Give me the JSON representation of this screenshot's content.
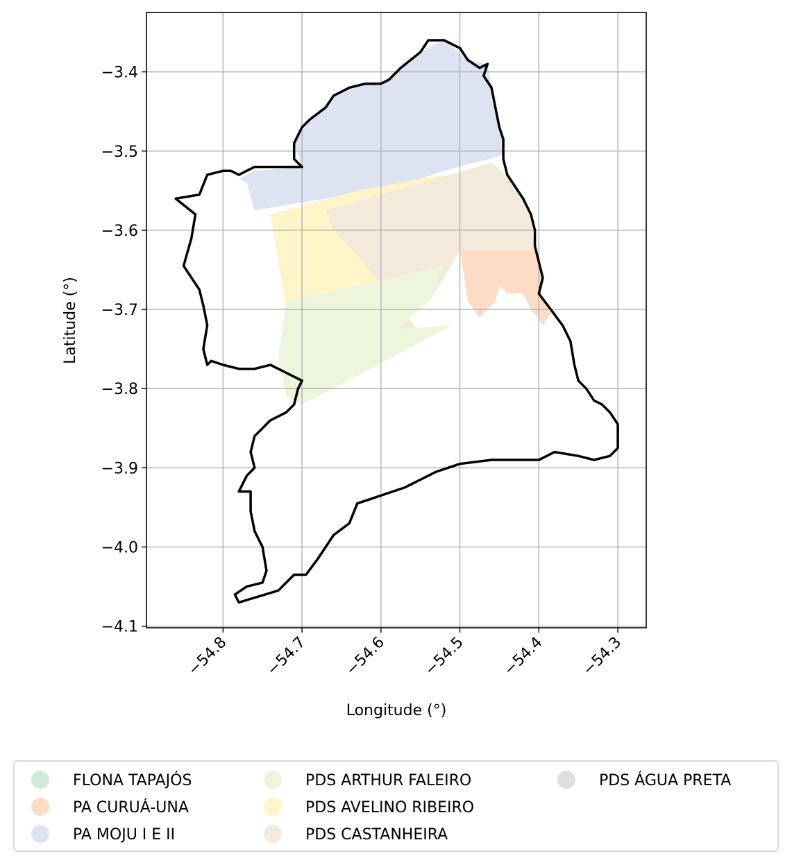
{
  "chart_data": {
    "type": "map",
    "title": "",
    "xlabel": "Longitude (°)",
    "ylabel": "Latitude (°)",
    "xlim": [
      -54.897,
      -54.264
    ],
    "ylim": [
      -4.102,
      -3.325
    ],
    "xticks": [
      -54.8,
      -54.7,
      -54.6,
      -54.5,
      -54.4,
      -54.3
    ],
    "xtick_labels": [
      "−54.8",
      "−54.7",
      "−54.6",
      "−54.5",
      "−54.4",
      "−54.3"
    ],
    "yticks": [
      -3.4,
      -3.5,
      -3.6,
      -3.7,
      -3.8,
      -3.9,
      -4.0,
      -4.1
    ],
    "ytick_labels": [
      "−3.4",
      "−3.5",
      "−3.6",
      "−3.7",
      "−3.8",
      "−3.9",
      "−4.0",
      "−4.1"
    ],
    "grid": true,
    "legend_position": "bottom",
    "legend_columns": 3,
    "legend": [
      {
        "label": "FLONA TAPAJÓS",
        "color": "#cfeadc"
      },
      {
        "label": "PA CURUÁ-UNA",
        "color": "#fddcc5"
      },
      {
        "label": "PA MOJU I E II",
        "color": "#dde3f0"
      },
      {
        "label": "PDS ARTHUR FALEIRO",
        "color": "#edf6dc"
      },
      {
        "label": "PDS AVELINO RIBEIRO",
        "color": "#fff5c8"
      },
      {
        "label": "PDS CASTANHEIRA",
        "color": "#f4eadc"
      },
      {
        "label": "PDS ÁGUA PRETA",
        "color": "#dedede"
      }
    ],
    "boundary_color": "#000000",
    "grid_color": "#b0b0b0",
    "boundary": [
      [
        -54.86,
        -3.56
      ],
      [
        -54.83,
        -3.555
      ],
      [
        -54.82,
        -3.53
      ],
      [
        -54.8,
        -3.525
      ],
      [
        -54.79,
        -3.525
      ],
      [
        -54.78,
        -3.53
      ],
      [
        -54.76,
        -3.52
      ],
      [
        -54.74,
        -3.52
      ],
      [
        -54.7,
        -3.52
      ],
      [
        -54.71,
        -3.51
      ],
      [
        -54.71,
        -3.49
      ],
      [
        -54.7,
        -3.47
      ],
      [
        -54.69,
        -3.46
      ],
      [
        -54.67,
        -3.445
      ],
      [
        -54.66,
        -3.43
      ],
      [
        -54.64,
        -3.42
      ],
      [
        -54.62,
        -3.415
      ],
      [
        -54.6,
        -3.415
      ],
      [
        -54.59,
        -3.41
      ],
      [
        -54.575,
        -3.395
      ],
      [
        -54.55,
        -3.375
      ],
      [
        -54.54,
        -3.36
      ],
      [
        -54.52,
        -3.36
      ],
      [
        -54.5,
        -3.37
      ],
      [
        -54.49,
        -3.385
      ],
      [
        -54.475,
        -3.395
      ],
      [
        -54.465,
        -3.39
      ],
      [
        -54.47,
        -3.405
      ],
      [
        -54.46,
        -3.42
      ],
      [
        -54.455,
        -3.445
      ],
      [
        -54.45,
        -3.47
      ],
      [
        -54.445,
        -3.485
      ],
      [
        -54.445,
        -3.51
      ],
      [
        -54.44,
        -3.53
      ],
      [
        -54.43,
        -3.545
      ],
      [
        -54.42,
        -3.56
      ],
      [
        -54.41,
        -3.58
      ],
      [
        -54.405,
        -3.6
      ],
      [
        -54.405,
        -3.62
      ],
      [
        -54.4,
        -3.64
      ],
      [
        -54.395,
        -3.66
      ],
      [
        -54.4,
        -3.68
      ],
      [
        -54.385,
        -3.7
      ],
      [
        -54.37,
        -3.72
      ],
      [
        -54.36,
        -3.74
      ],
      [
        -54.355,
        -3.77
      ],
      [
        -54.35,
        -3.79
      ],
      [
        -54.34,
        -3.8
      ],
      [
        -54.33,
        -3.815
      ],
      [
        -54.32,
        -3.82
      ],
      [
        -54.31,
        -3.83
      ],
      [
        -54.3,
        -3.845
      ],
      [
        -54.3,
        -3.875
      ],
      [
        -54.31,
        -3.885
      ],
      [
        -54.33,
        -3.89
      ],
      [
        -54.35,
        -3.885
      ],
      [
        -54.38,
        -3.88
      ],
      [
        -54.4,
        -3.89
      ],
      [
        -54.43,
        -3.89
      ],
      [
        -54.46,
        -3.89
      ],
      [
        -54.5,
        -3.895
      ],
      [
        -54.53,
        -3.905
      ],
      [
        -54.57,
        -3.925
      ],
      [
        -54.63,
        -3.945
      ],
      [
        -54.64,
        -3.97
      ],
      [
        -54.66,
        -3.985
      ],
      [
        -54.68,
        -4.015
      ],
      [
        -54.695,
        -4.035
      ],
      [
        -54.71,
        -4.035
      ],
      [
        -54.73,
        -4.055
      ],
      [
        -54.78,
        -4.07
      ],
      [
        -54.785,
        -4.06
      ],
      [
        -54.77,
        -4.05
      ],
      [
        -54.75,
        -4.045
      ],
      [
        -54.745,
        -4.03
      ],
      [
        -54.75,
        -4.0
      ],
      [
        -54.76,
        -3.98
      ],
      [
        -54.765,
        -3.955
      ],
      [
        -54.765,
        -3.93
      ],
      [
        -54.78,
        -3.93
      ],
      [
        -54.77,
        -3.91
      ],
      [
        -54.76,
        -3.9
      ],
      [
        -54.765,
        -3.88
      ],
      [
        -54.76,
        -3.86
      ],
      [
        -54.75,
        -3.85
      ],
      [
        -54.74,
        -3.84
      ],
      [
        -54.72,
        -3.83
      ],
      [
        -54.71,
        -3.82
      ],
      [
        -54.705,
        -3.8
      ],
      [
        -54.7,
        -3.79
      ],
      [
        -54.72,
        -3.78
      ],
      [
        -54.74,
        -3.77
      ],
      [
        -54.76,
        -3.775
      ],
      [
        -54.78,
        -3.775
      ],
      [
        -54.8,
        -3.77
      ],
      [
        -54.815,
        -3.765
      ],
      [
        -54.82,
        -3.77
      ],
      [
        -54.825,
        -3.75
      ],
      [
        -54.82,
        -3.72
      ],
      [
        -54.825,
        -3.695
      ],
      [
        -54.83,
        -3.675
      ],
      [
        -54.85,
        -3.645
      ],
      [
        -54.84,
        -3.61
      ],
      [
        -54.835,
        -3.58
      ],
      [
        -54.86,
        -3.56
      ]
    ],
    "areas": [
      {
        "name": "PA MOJU I E II",
        "polygon": [
          [
            -54.78,
            -3.535
          ],
          [
            -54.76,
            -3.525
          ],
          [
            -54.7,
            -3.52
          ],
          [
            -54.71,
            -3.49
          ],
          [
            -54.69,
            -3.46
          ],
          [
            -54.66,
            -3.43
          ],
          [
            -54.62,
            -3.415
          ],
          [
            -54.59,
            -3.41
          ],
          [
            -54.55,
            -3.375
          ],
          [
            -54.52,
            -3.36
          ],
          [
            -54.49,
            -3.385
          ],
          [
            -54.465,
            -3.39
          ],
          [
            -54.455,
            -3.445
          ],
          [
            -54.445,
            -3.485
          ],
          [
            -54.445,
            -3.505
          ],
          [
            -54.52,
            -3.525
          ],
          [
            -54.58,
            -3.545
          ],
          [
            -54.76,
            -3.575
          ],
          [
            -54.77,
            -3.54
          ]
        ]
      },
      {
        "name": "PDS AVELINO RIBEIRO",
        "polygon": [
          [
            -54.74,
            -3.58
          ],
          [
            -54.63,
            -3.55
          ],
          [
            -54.52,
            -3.53
          ],
          [
            -54.515,
            -3.55
          ],
          [
            -54.64,
            -3.58
          ],
          [
            -54.65,
            -3.61
          ],
          [
            -54.52,
            -3.6
          ],
          [
            -54.51,
            -3.64
          ],
          [
            -54.7,
            -3.69
          ],
          [
            -54.72,
            -3.7
          ]
        ]
      },
      {
        "name": "PDS CASTANHEIRA",
        "polygon": [
          [
            -54.67,
            -3.575
          ],
          [
            -54.46,
            -3.515
          ],
          [
            -54.43,
            -3.54
          ],
          [
            -54.41,
            -3.58
          ],
          [
            -54.405,
            -3.625
          ],
          [
            -54.5,
            -3.625
          ],
          [
            -54.52,
            -3.66
          ],
          [
            -54.54,
            -3.69
          ],
          [
            -54.58,
            -3.725
          ],
          [
            -54.55,
            -3.73
          ],
          [
            -54.64,
            -3.62
          ],
          [
            -54.66,
            -3.6
          ]
        ]
      },
      {
        "name": "PDS ARTHUR FALEIRO",
        "polygon": [
          [
            -54.72,
            -3.69
          ],
          [
            -54.52,
            -3.645
          ],
          [
            -54.54,
            -3.69
          ],
          [
            -54.58,
            -3.725
          ],
          [
            -54.51,
            -3.72
          ],
          [
            -54.66,
            -3.8
          ],
          [
            -54.7,
            -3.82
          ],
          [
            -54.72,
            -3.81
          ],
          [
            -54.73,
            -3.76
          ]
        ]
      },
      {
        "name": "PA CURUÁ-UNA",
        "polygon": [
          [
            -54.5,
            -3.625
          ],
          [
            -54.405,
            -3.625
          ],
          [
            -54.4,
            -3.64
          ],
          [
            -54.395,
            -3.66
          ],
          [
            -54.4,
            -3.68
          ],
          [
            -54.385,
            -3.705
          ],
          [
            -54.395,
            -3.72
          ],
          [
            -54.41,
            -3.7
          ],
          [
            -54.42,
            -3.68
          ],
          [
            -54.44,
            -3.68
          ],
          [
            -54.45,
            -3.67
          ],
          [
            -54.455,
            -3.69
          ],
          [
            -54.475,
            -3.71
          ],
          [
            -54.49,
            -3.69
          ]
        ]
      }
    ]
  }
}
